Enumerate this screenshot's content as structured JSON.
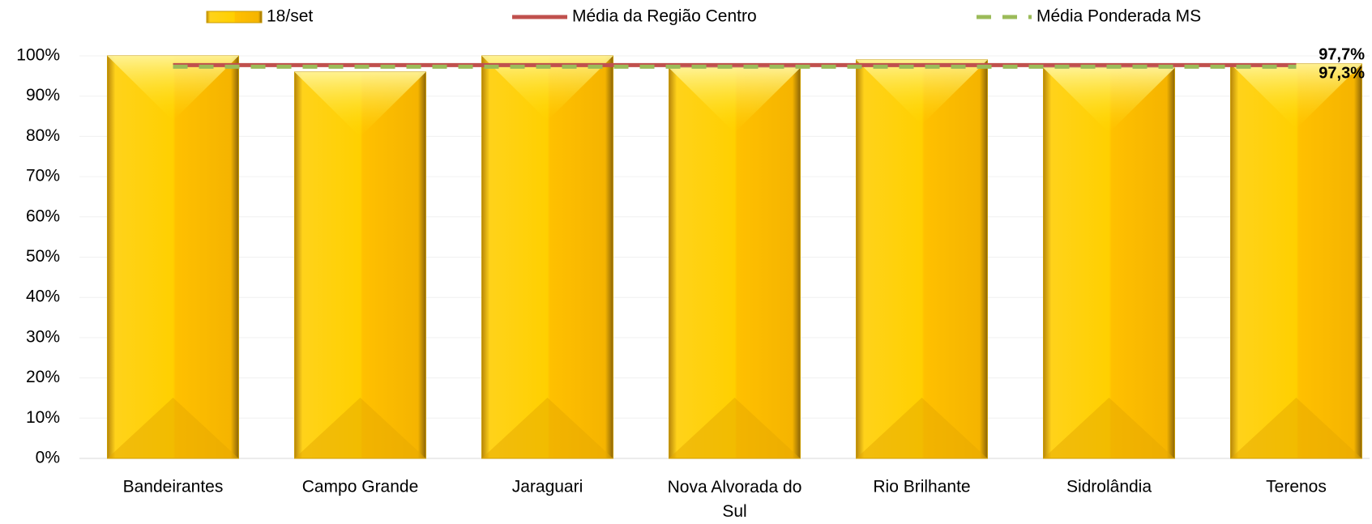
{
  "chart_data": {
    "type": "bar",
    "categories": [
      "Bandeirantes",
      "Campo Grande",
      "Jaraguari",
      "Nova Alvorada do Sul",
      "Rio Brilhante",
      "Sidrolândia",
      "Terenos"
    ],
    "series": [
      {
        "name": "18/set",
        "type": "bar",
        "color": "#FFC000",
        "values": [
          100,
          96,
          100,
          97,
          99,
          97,
          98
        ]
      },
      {
        "name": "Média da Região Centro",
        "type": "line",
        "color": "#C0504D",
        "values": [
          97.7,
          97.7,
          97.7,
          97.7,
          97.7,
          97.7,
          97.7
        ],
        "value_labels": [
          null,
          null,
          null,
          null,
          null,
          null,
          "97,7%"
        ]
      },
      {
        "name": "Média Ponderada MS",
        "type": "dashed-line",
        "color": "#9BBB59",
        "values": [
          97.3,
          97.3,
          97.3,
          97.3,
          97.3,
          97.3,
          97.3
        ],
        "value_labels": [
          null,
          null,
          null,
          null,
          null,
          null,
          "97,3%"
        ]
      }
    ],
    "ylim": [
      0,
      100
    ],
    "yticks": [
      {
        "value": 0,
        "label": "0%"
      },
      {
        "value": 10,
        "label": "10%"
      },
      {
        "value": 20,
        "label": "20%"
      },
      {
        "value": 30,
        "label": "30%"
      },
      {
        "value": 40,
        "label": "40%"
      },
      {
        "value": 50,
        "label": "50%"
      },
      {
        "value": 60,
        "label": "60%"
      },
      {
        "value": 70,
        "label": "70%"
      },
      {
        "value": 80,
        "label": "80%"
      },
      {
        "value": 90,
        "label": "90%"
      },
      {
        "value": 100,
        "label": "100%"
      }
    ],
    "grid": true,
    "legend": "top"
  }
}
